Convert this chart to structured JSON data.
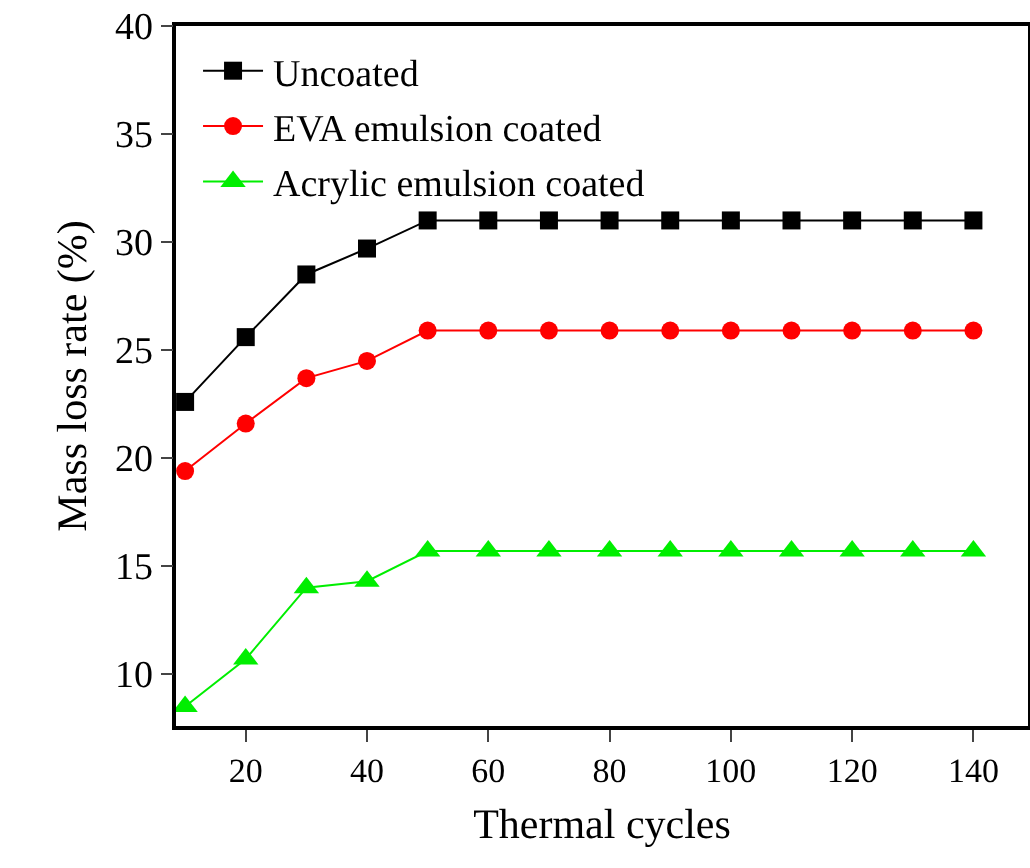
{
  "chart_data": {
    "type": "line",
    "xlabel": "Thermal cycles",
    "ylabel": "Mass loss rate (%)",
    "x": [
      10,
      20,
      30,
      40,
      50,
      60,
      70,
      80,
      90,
      100,
      110,
      120,
      130,
      140
    ],
    "series": [
      {
        "name": "Uncoated",
        "color": "#000000",
        "marker": "square",
        "values": [
          22.6,
          25.6,
          28.5,
          29.7,
          31,
          31,
          31,
          31,
          31,
          31,
          31,
          31,
          31,
          31
        ]
      },
      {
        "name": "EVA emulsion coated",
        "color": "#ff0000",
        "marker": "circle",
        "values": [
          19.4,
          21.6,
          23.7,
          24.5,
          25.9,
          25.9,
          25.9,
          25.9,
          25.9,
          25.9,
          25.9,
          25.9,
          25.9,
          25.9
        ]
      },
      {
        "name": "Acrylic emulsion coated",
        "color": "#00ee00",
        "marker": "triangle",
        "values": [
          8.5,
          10.7,
          14.0,
          14.3,
          15.7,
          15.7,
          15.7,
          15.7,
          15.7,
          15.7,
          15.7,
          15.7,
          15.7,
          15.7
        ]
      }
    ],
    "xlim": [
      8.5,
      149
    ],
    "xticks": [
      20,
      40,
      60,
      80,
      100,
      120,
      140
    ],
    "ylim": [
      7.6,
      40
    ],
    "yticks": [
      10,
      15,
      20,
      25,
      30,
      35,
      40
    ],
    "grid": false,
    "legend": "top left",
    "line_style": "solid"
  }
}
